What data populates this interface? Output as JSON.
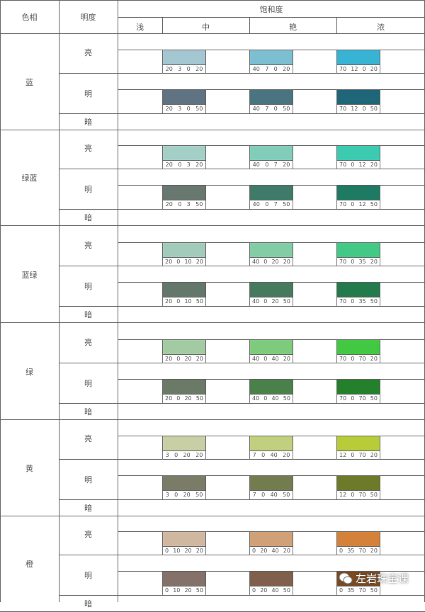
{
  "header": {
    "hue": "色相",
    "lightness": "明度",
    "saturation": "饱和度",
    "sat_levels": [
      "浅",
      "中",
      "艳",
      "浓"
    ]
  },
  "lightness_labels": {
    "bright": "亮",
    "clear": "明",
    "dark": "暗"
  },
  "groups": [
    {
      "hue": "蓝",
      "bright": [
        {
          "cmyk": [
            "20",
            "3",
            "0",
            "20"
          ],
          "color": "#a4c6d0"
        },
        {
          "cmyk": [
            "40",
            "7",
            "0",
            "20"
          ],
          "color": "#7cbfd0"
        },
        {
          "cmyk": [
            "70",
            "12",
            "0",
            "20"
          ],
          "color": "#38b3d3"
        }
      ],
      "clear": [
        {
          "cmyk": [
            "20",
            "3",
            "0",
            "50"
          ],
          "color": "#5f7383"
        },
        {
          "cmyk": [
            "40",
            "7",
            "0",
            "50"
          ],
          "color": "#4a7480"
        },
        {
          "cmyk": [
            "70",
            "12",
            "0",
            "50"
          ],
          "color": "#1f6678"
        }
      ]
    },
    {
      "hue": "绿蓝",
      "bright": [
        {
          "cmyk": [
            "20",
            "0",
            "3",
            "20"
          ],
          "color": "#a3cfc6"
        },
        {
          "cmyk": [
            "40",
            "0",
            "7",
            "20"
          ],
          "color": "#82cdb9"
        },
        {
          "cmyk": [
            "70",
            "0",
            "12",
            "20"
          ],
          "color": "#3ccab1"
        }
      ],
      "clear": [
        {
          "cmyk": [
            "20",
            "0",
            "3",
            "50"
          ],
          "color": "#68776f"
        },
        {
          "cmyk": [
            "40",
            "0",
            "7",
            "50"
          ],
          "color": "#3f7b69"
        },
        {
          "cmyk": [
            "70",
            "0",
            "12",
            "50"
          ],
          "color": "#1f7a64"
        }
      ]
    },
    {
      "hue": "蓝绿",
      "bright": [
        {
          "cmyk": [
            "20",
            "0",
            "10",
            "20"
          ],
          "color": "#a3cbbb"
        },
        {
          "cmyk": [
            "40",
            "0",
            "20",
            "20"
          ],
          "color": "#82cca6"
        },
        {
          "cmyk": [
            "70",
            "0",
            "35",
            "20"
          ],
          "color": "#42c985"
        }
      ],
      "clear": [
        {
          "cmyk": [
            "20",
            "0",
            "10",
            "50"
          ],
          "color": "#63776a"
        },
        {
          "cmyk": [
            "40",
            "0",
            "20",
            "50"
          ],
          "color": "#467a5e"
        },
        {
          "cmyk": [
            "70",
            "0",
            "35",
            "50"
          ],
          "color": "#237a4b"
        }
      ]
    },
    {
      "hue": "绿",
      "bright": [
        {
          "cmyk": [
            "20",
            "0",
            "20",
            "20"
          ],
          "color": "#a3cba3"
        },
        {
          "cmyk": [
            "40",
            "0",
            "40",
            "20"
          ],
          "color": "#7fcb7d"
        },
        {
          "cmyk": [
            "70",
            "0",
            "70",
            "20"
          ],
          "color": "#43c844"
        }
      ],
      "clear": [
        {
          "cmyk": [
            "20",
            "0",
            "20",
            "50"
          ],
          "color": "#6a7a66"
        },
        {
          "cmyk": [
            "40",
            "0",
            "40",
            "50"
          ],
          "color": "#4a814a"
        },
        {
          "cmyk": [
            "70",
            "0",
            "70",
            "50"
          ],
          "color": "#24802b"
        }
      ]
    },
    {
      "hue": "黄",
      "bright": [
        {
          "cmyk": [
            "3",
            "0",
            "20",
            "20"
          ],
          "color": "#c9cfa5"
        },
        {
          "cmyk": [
            "7",
            "0",
            "40",
            "20"
          ],
          "color": "#c0d07e"
        },
        {
          "cmyk": [
            "12",
            "0",
            "70",
            "20"
          ],
          "color": "#b8cc3a"
        }
      ],
      "clear": [
        {
          "cmyk": [
            "3",
            "0",
            "20",
            "50"
          ],
          "color": "#7b7c68"
        },
        {
          "cmyk": [
            "7",
            "0",
            "40",
            "50"
          ],
          "color": "#737c4f"
        },
        {
          "cmyk": [
            "12",
            "0",
            "70",
            "50"
          ],
          "color": "#6c7a2a"
        }
      ]
    },
    {
      "hue": "橙",
      "bright": [
        {
          "cmyk": [
            "0",
            "10",
            "20",
            "20"
          ],
          "color": "#d0b8a0"
        },
        {
          "cmyk": [
            "0",
            "20",
            "40",
            "20"
          ],
          "color": "#d0a077"
        },
        {
          "cmyk": [
            "0",
            "35",
            "70",
            "20"
          ],
          "color": "#d4823a"
        }
      ],
      "clear": [
        {
          "cmyk": [
            "0",
            "10",
            "20",
            "50"
          ],
          "color": "#83716a"
        },
        {
          "cmyk": [
            "0",
            "20",
            "40",
            "50"
          ],
          "color": "#80604c"
        },
        {
          "cmyk": [
            "0",
            "35",
            "70",
            "50"
          ],
          "color": "#7a4a22"
        }
      ]
    }
  ],
  "watermark": {
    "text": "左岩珠宝课",
    "icon": "wechat-icon"
  }
}
